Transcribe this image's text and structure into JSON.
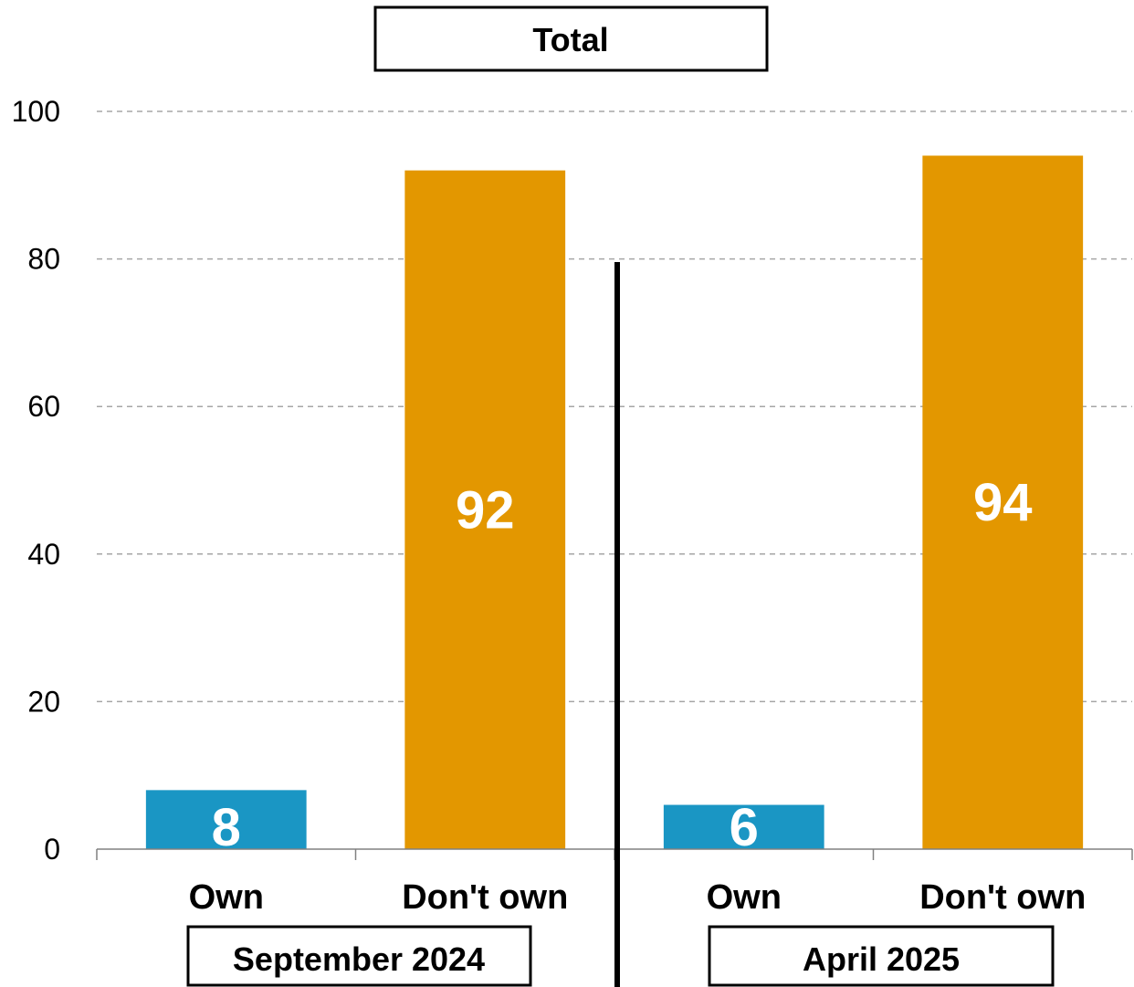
{
  "chart_data": {
    "type": "bar",
    "title": "Total",
    "groups": [
      {
        "label": "September 2024",
        "categories": [
          "Own",
          "Don't own"
        ],
        "values": [
          8,
          92
        ]
      },
      {
        "label": "April 2025",
        "categories": [
          "Own",
          "Don't own"
        ],
        "values": [
          6,
          94
        ]
      }
    ],
    "ylim": [
      0,
      100
    ],
    "yticks": [
      0,
      20,
      40,
      60,
      80,
      100
    ],
    "grid": true,
    "colors": {
      "Own": "#1a96c4",
      "Don't own": "#e39700"
    }
  }
}
